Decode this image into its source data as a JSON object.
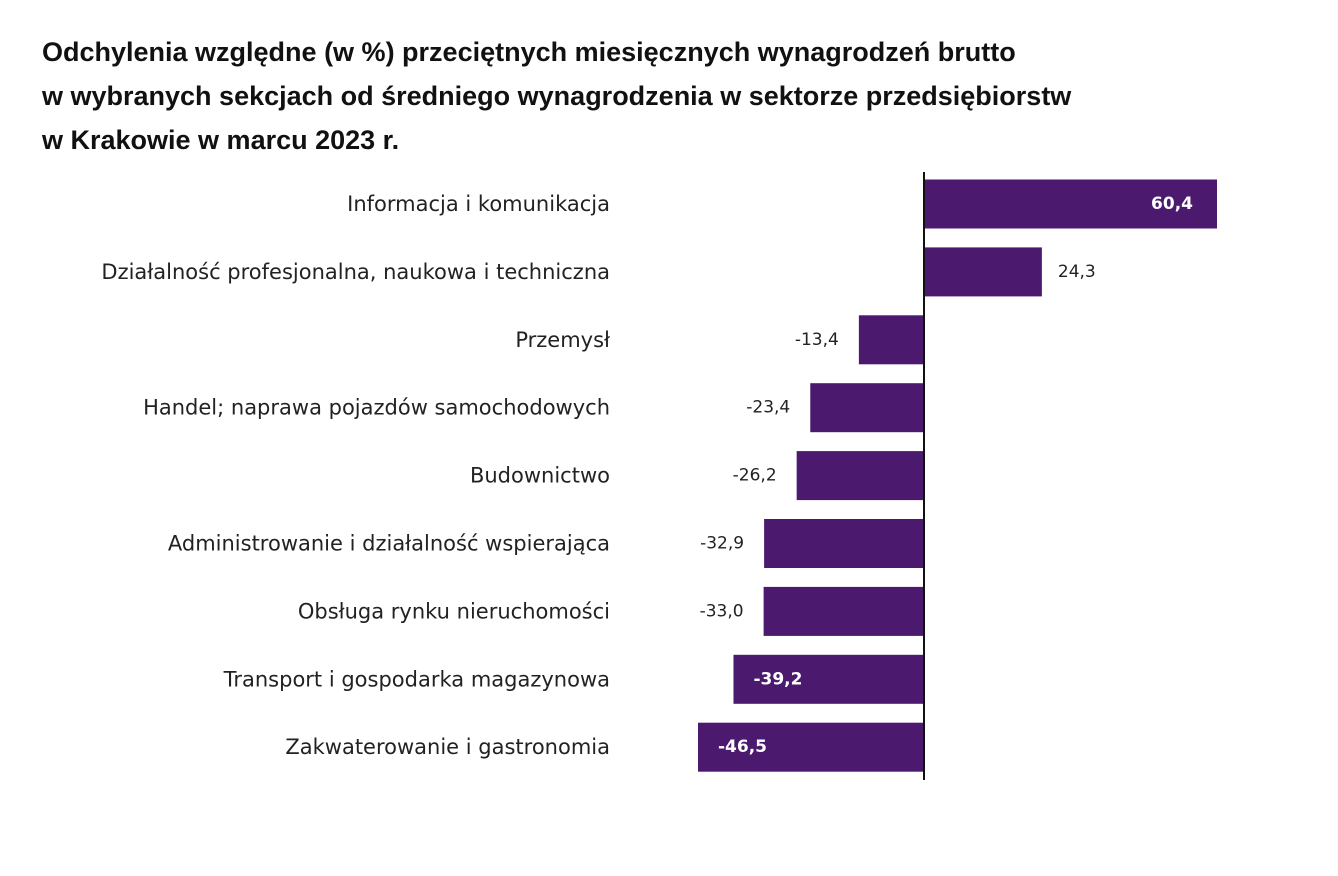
{
  "title_lines": [
    "Odchylenia względne (w %) przeciętnych miesięcznych wynagrodzeń brutto",
    "w wybranych sekcjach od średniego wynagrodzenia w sektorze przedsiębiorstw",
    "w Krakowie w marcu 2023 r."
  ],
  "colors": {
    "bar": "#4b1a6e",
    "axis": "#111111",
    "label_inside": "#ffffff",
    "label_outside": "#222222"
  },
  "chart_data": {
    "type": "bar",
    "orientation": "horizontal",
    "title": "Odchylenia względne (w %) przeciętnych miesięcznych wynagrodzeń brutto w wybranych sekcjach od średniego wynagrodzenia w sektorze przedsiębiorstw w Krakowie w marcu 2023 r.",
    "categories": [
      "Informacja i komunikacja",
      "Działalność profesjonalna, naukowa i techniczna",
      "Przemysł",
      "Handel; naprawa pojazdów samochodowych",
      "Budownictwo",
      "Administrowanie i działalność wspierająca",
      "Obsługa rynku nieruchomości",
      "Transport i gospodarka magazynowa",
      "Zakwaterowanie i gastronomia"
    ],
    "values": [
      60.4,
      24.3,
      -13.4,
      -23.4,
      -26.2,
      -32.9,
      -33.0,
      -39.2,
      -46.5
    ],
    "value_labels": [
      "60,4",
      "24,3",
      "-13,4",
      "-23,4",
      "-26,2",
      "-32,9",
      "-33,0",
      "-39,2",
      "-46,5"
    ],
    "label_inside": [
      true,
      false,
      false,
      false,
      false,
      false,
      false,
      true,
      true
    ],
    "xlim": [
      -46.5,
      60.4
    ],
    "grid": false,
    "legend": "none"
  }
}
